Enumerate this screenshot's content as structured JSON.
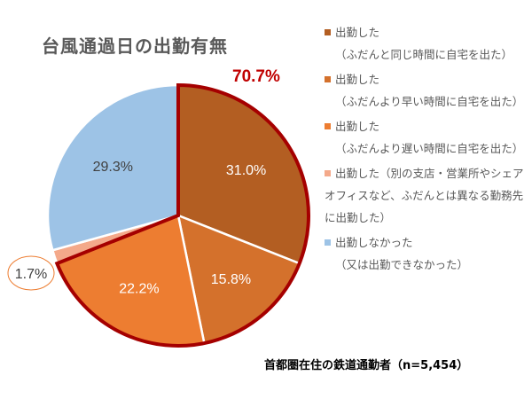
{
  "chart_data": {
    "type": "pie",
    "title": "台風通過日の出勤有無",
    "highlight_label": "70.7%",
    "highlight_color": "#A50000",
    "slices": [
      {
        "name": "出勤した（ふだんと同じ時間に自宅を出た）",
        "line1": "出勤した",
        "line2": "（ふだんと同じ時間に自宅を出た）",
        "value": 31.0,
        "label": "31.0%",
        "color": "#B35E22",
        "label_color": "#ffffff"
      },
      {
        "name": "出勤した（ふだんより早い時間に自宅を出た）",
        "line1": "出勤した",
        "line2": "（ふだんより早い時間に自宅を出た）",
        "value": 15.8,
        "label": "15.8%",
        "color": "#D4712C",
        "label_color": "#ffffff"
      },
      {
        "name": "出勤した（ふだんより遅い時間に自宅を出た）",
        "line1": "出勤した",
        "line2": "（ふだんより遅い時間に自宅を出た）",
        "value": 22.2,
        "label": "22.2%",
        "color": "#ED7D31",
        "label_color": "#ffffff"
      },
      {
        "name": "出勤した（別の支店・営業所やシェアオフィスなど、ふだんとは異なる勤務先に出勤した）",
        "line1": "出勤した（別の支店・営業所やシェアオフィスなど、ふだんとは異なる勤務先に出勤した）",
        "line2": "",
        "value": 1.7,
        "label": "1.7%",
        "color": "#F4A98A",
        "label_color": "#404040"
      },
      {
        "name": "出勤しなかった（又は出勤できなかった）",
        "line1": "出勤しなかった",
        "line2": "（又は出勤できなかった）",
        "value": 29.3,
        "label": "29.3%",
        "color": "#9DC3E6",
        "label_color": "#404040"
      }
    ],
    "footnote": "首都圏在住の鉄道通勤者（n=5,454）",
    "legend_position": "right"
  }
}
